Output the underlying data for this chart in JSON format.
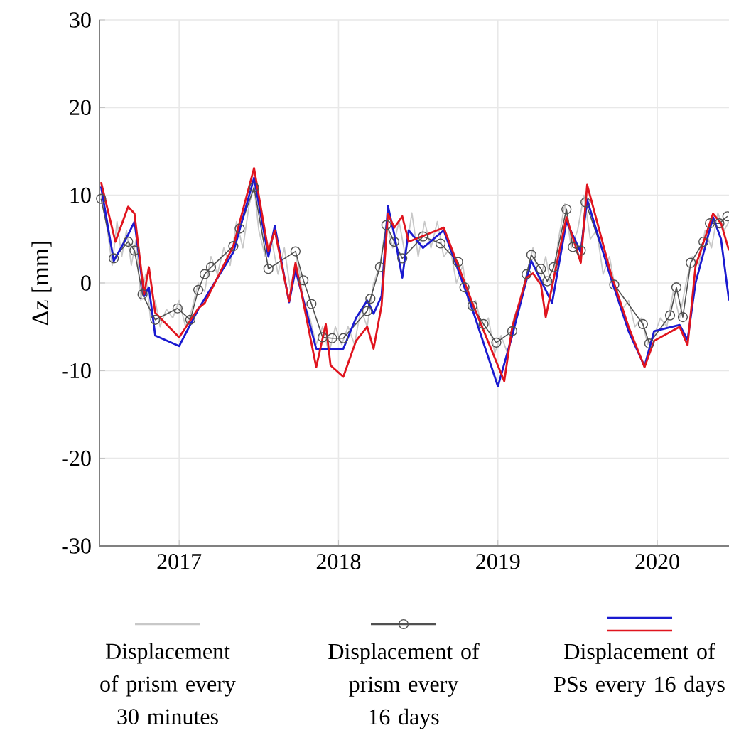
{
  "chart_data": {
    "type": "line",
    "ylabel": "Δz [mm]",
    "xlim": [
      2016.5,
      2020.45
    ],
    "ylim": [
      -30,
      30
    ],
    "xticks": [
      2017,
      2018,
      2019,
      2020
    ],
    "yticks": [
      -30,
      -20,
      -10,
      0,
      10,
      20,
      30
    ],
    "grid": true,
    "legend": "bottom",
    "line_style": "solid",
    "series": [
      {
        "name": "Displacement of prism every 30 minutes",
        "color": "#c8c8c8",
        "marker": "none",
        "x": [
          2016.51,
          2016.55,
          2016.58,
          2016.61,
          2016.64,
          2016.67,
          2016.7,
          2016.73,
          2016.76,
          2016.79,
          2016.82,
          2016.85,
          2016.88,
          2016.92,
          2016.96,
          2017.0,
          2017.04,
          2017.08,
          2017.12,
          2017.16,
          2017.2,
          2017.24,
          2017.28,
          2017.32,
          2017.36,
          2017.4,
          2017.44,
          2017.47,
          2017.5,
          2017.54,
          2017.58,
          2017.62,
          2017.66,
          2017.7,
          2017.74,
          2017.78,
          2017.82,
          2017.86,
          2017.9,
          2017.94,
          2017.98,
          2018.02,
          2018.06,
          2018.1,
          2018.14,
          2018.18,
          2018.22,
          2018.26,
          2018.3,
          2018.34,
          2018.38,
          2018.42,
          2018.46,
          2018.5,
          2018.54,
          2018.58,
          2018.62,
          2018.66,
          2018.7,
          2018.74,
          2018.78,
          2018.82,
          2018.86,
          2018.9,
          2018.94,
          2018.98,
          2019.02,
          2019.06,
          2019.1,
          2019.14,
          2019.18,
          2019.22,
          2019.26,
          2019.3,
          2019.34,
          2019.38,
          2019.42,
          2019.46,
          2019.5,
          2019.54,
          2019.58,
          2019.62,
          2019.66,
          2019.7,
          2019.74,
          2019.78,
          2019.82,
          2019.86,
          2019.9,
          2019.94,
          2019.98,
          2020.02,
          2020.06,
          2020.1,
          2020.14,
          2020.18,
          2020.22,
          2020.26,
          2020.3,
          2020.34,
          2020.38,
          2020.42,
          2020.45
        ],
        "values": [
          10,
          6,
          2,
          7,
          3,
          6,
          2,
          5,
          -2,
          1,
          -4,
          -2,
          -5,
          -3,
          -4,
          -2,
          -5,
          -3,
          0,
          -1,
          3,
          1,
          4,
          2,
          7,
          4,
          9,
          11,
          6,
          3,
          5,
          1,
          4,
          -1,
          3,
          -2,
          -4,
          -7,
          -5,
          -8,
          -5,
          -7,
          -5,
          -7,
          -3,
          -5,
          0,
          2,
          7,
          4,
          7,
          3,
          8,
          3,
          7,
          4,
          7,
          3,
          4,
          0,
          2,
          -3,
          -2,
          -5,
          -4,
          -8,
          -6,
          -8,
          -4,
          -2,
          1,
          4,
          0,
          3,
          -1,
          5,
          9,
          4,
          6,
          10,
          5,
          6,
          1,
          3,
          -1,
          -3,
          -2,
          -5,
          -4,
          -7,
          -6,
          -4,
          -5,
          -1,
          -4,
          0,
          3,
          2,
          6,
          4,
          8,
          6,
          7
        ]
      },
      {
        "name": "Displacement of prism every 16 days",
        "color": "#505050",
        "marker": "circle",
        "x": [
          2016.51,
          2016.59,
          2016.68,
          2016.72,
          2016.77,
          2016.85,
          2016.99,
          2017.07,
          2017.12,
          2017.16,
          2017.2,
          2017.34,
          2017.38,
          2017.47,
          2017.56,
          2017.73,
          2017.78,
          2017.83,
          2017.9,
          2017.96,
          2018.03,
          2018.18,
          2018.2,
          2018.26,
          2018.3,
          2018.35,
          2018.4,
          2018.53,
          2018.64,
          2018.75,
          2018.79,
          2018.84,
          2018.91,
          2018.99,
          2019.09,
          2019.18,
          2019.21,
          2019.27,
          2019.31,
          2019.35,
          2019.43,
          2019.47,
          2019.52,
          2019.55,
          2019.73,
          2019.91,
          2019.95,
          2020.08,
          2020.12,
          2020.16,
          2020.21,
          2020.29,
          2020.33,
          2020.39,
          2020.44
        ],
        "values": [
          9.6,
          2.8,
          4.7,
          3.7,
          -1.3,
          -4.2,
          -2.9,
          -4.2,
          -0.8,
          1.0,
          1.8,
          4.2,
          6.2,
          10.9,
          1.6,
          3.6,
          0.3,
          -2.4,
          -6.2,
          -6.3,
          -6.3,
          -3.2,
          -1.8,
          1.8,
          6.6,
          4.7,
          2.8,
          5.3,
          4.5,
          2.4,
          -0.5,
          -2.6,
          -4.7,
          -6.8,
          -5.5,
          1.0,
          3.2,
          1.6,
          0.2,
          1.8,
          8.4,
          4.1,
          3.7,
          9.2,
          -0.2,
          -4.7,
          -6.9,
          -3.7,
          -0.5,
          -3.9,
          2.3,
          4.7,
          6.8,
          6.8,
          7.6
        ]
      },
      {
        "color": "#1a1ad0",
        "marker": "none",
        "x": [
          2016.51,
          2016.59,
          2016.68,
          2016.72,
          2016.78,
          2016.81,
          2016.85,
          2017.0,
          2017.12,
          2017.34,
          2017.47,
          2017.56,
          2017.6,
          2017.69,
          2017.73,
          2017.86,
          2018.03,
          2018.11,
          2018.18,
          2018.22,
          2018.27,
          2018.31,
          2018.35,
          2018.4,
          2018.44,
          2018.53,
          2018.66,
          2018.84,
          2019.0,
          2019.09,
          2019.21,
          2019.34,
          2019.43,
          2019.52,
          2019.56,
          2019.71,
          2019.82,
          2019.92,
          2019.98,
          2020.14,
          2020.19,
          2020.24,
          2020.35,
          2020.4,
          2020.45
        ],
        "values": [
          11.0,
          2.5,
          5.5,
          7.0,
          -1.5,
          -0.5,
          -6.0,
          -7.2,
          -3.0,
          3.5,
          12.0,
          3.0,
          6.5,
          -2.2,
          1.5,
          -7.5,
          -7.5,
          -4.0,
          -2.0,
          -3.5,
          -1.5,
          8.8,
          5.5,
          0.6,
          6.0,
          4.0,
          6.0,
          -3.0,
          -11.8,
          -6.0,
          2.5,
          -2.3,
          7.0,
          3.5,
          9.5,
          0.5,
          -5.5,
          -9.5,
          -5.5,
          -4.8,
          -6.5,
          0.0,
          7.5,
          5.0,
          -2.0
        ]
      },
      {
        "name": "Displacement of PSs every 16 days",
        "color": "#e0141e",
        "marker": "none",
        "x": [
          2016.51,
          2016.6,
          2016.68,
          2016.72,
          2016.78,
          2016.81,
          2016.85,
          2017.0,
          2017.12,
          2017.16,
          2017.34,
          2017.47,
          2017.56,
          2017.6,
          2017.69,
          2017.73,
          2017.86,
          2017.92,
          2017.95,
          2018.03,
          2018.11,
          2018.18,
          2018.22,
          2018.27,
          2018.31,
          2018.35,
          2018.4,
          2018.44,
          2018.66,
          2018.84,
          2019.04,
          2019.09,
          2019.18,
          2019.22,
          2019.27,
          2019.3,
          2019.43,
          2019.52,
          2019.56,
          2019.71,
          2019.82,
          2019.92,
          2019.98,
          2020.14,
          2020.19,
          2020.24,
          2020.35,
          2020.4,
          2020.45
        ],
        "values": [
          11.5,
          4.7,
          8.7,
          7.9,
          -1.3,
          1.8,
          -3.4,
          -6.2,
          -2.9,
          -2.3,
          4.2,
          13.1,
          3.6,
          6.0,
          -2.1,
          2.3,
          -9.6,
          -4.7,
          -9.4,
          -10.7,
          -6.6,
          -5.0,
          -7.5,
          -2.6,
          7.9,
          6.3,
          7.6,
          4.7,
          6.3,
          -2.3,
          -11.2,
          -5.0,
          0.6,
          1.1,
          -0.2,
          -3.9,
          7.5,
          2.3,
          11.2,
          1.0,
          -5.0,
          -9.6,
          -6.6,
          -5.0,
          -7.1,
          1.9,
          7.9,
          6.8,
          3.7
        ]
      }
    ]
  }
}
